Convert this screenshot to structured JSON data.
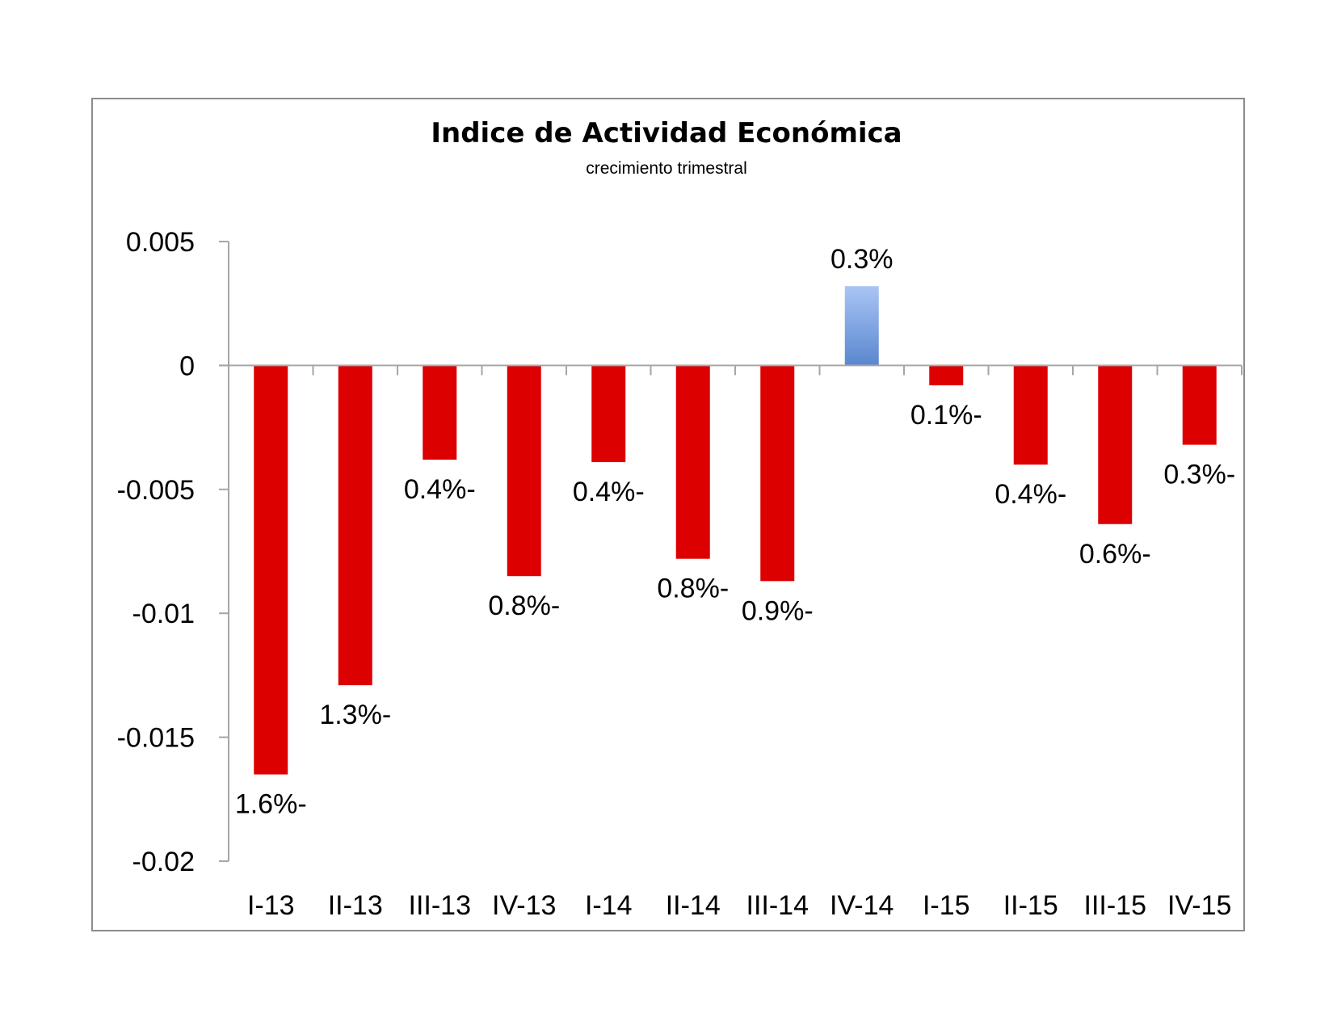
{
  "chart_data": {
    "type": "bar",
    "title": "Indice de Actividad Económica",
    "subtitle": "crecimiento trimestral",
    "categories": [
      "I-13",
      "II-13",
      "III-13",
      "IV-13",
      "I-14",
      "II-14",
      "III-14",
      "IV-14",
      "I-15",
      "II-15",
      "III-15",
      "IV-15"
    ],
    "values": [
      -0.0165,
      -0.0129,
      -0.0038,
      -0.0085,
      -0.0039,
      -0.0078,
      -0.0087,
      0.0032,
      -0.0008,
      -0.004,
      -0.0064,
      -0.0032
    ],
    "data_labels": [
      "1.6%-",
      "1.3%-",
      "0.4%-",
      "0.8%-",
      "0.4%-",
      "0.8%-",
      "0.9%-",
      "0.3%",
      "0.1%-",
      "0.4%-",
      "0.6%-",
      "0.3%-"
    ],
    "ylim": [
      -0.02,
      0.005
    ],
    "yticks": [
      "0.005",
      "0",
      "-0.005",
      "-0.01",
      "-0.015",
      "-0.02"
    ],
    "ytick_values": [
      0.005,
      0,
      -0.005,
      -0.01,
      -0.015,
      -0.02
    ],
    "xlabel": "",
    "ylabel": "",
    "grid": false,
    "legend": "none",
    "colors": {
      "negative": "#dd0000",
      "positive_top": "#a9c5f5",
      "positive_bottom": "#5a87cf",
      "axis": "#a6a6a6"
    }
  }
}
